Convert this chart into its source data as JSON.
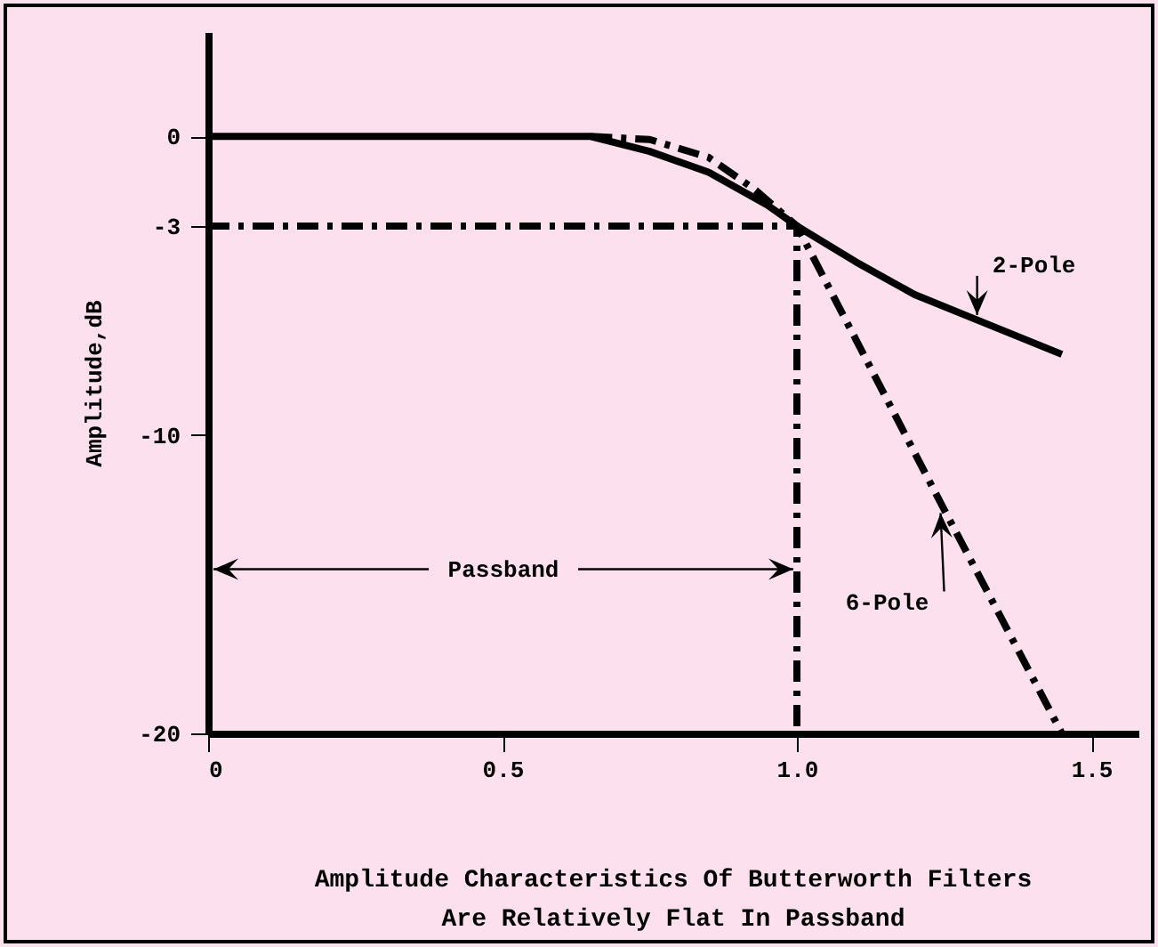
{
  "chart_data": {
    "type": "line",
    "title": "Amplitude Characteristics Of Butterworth Filters\nAre Relatively Flat In Passband",
    "ylabel": "Amplitude,dB",
    "xlim": [
      0,
      1.58
    ],
    "ylim": [
      -20,
      3.5
    ],
    "xticks": [
      0,
      0.5,
      {
        "value": 1,
        "label": "1.0"
      },
      1.5
    ],
    "yticks": [
      0,
      -3,
      -10,
      -20
    ],
    "series": [
      {
        "name": "2-Pole",
        "color": "#000000",
        "line_style": "solid",
        "x": [
          0,
          0.65,
          0.75,
          0.85,
          0.95,
          1.0,
          1.1,
          1.2,
          1.3,
          1.45
        ],
        "values": [
          0,
          0,
          -0.5,
          -1.2,
          -2.3,
          -3,
          -4.2,
          -5.3,
          -6.1,
          -7.3
        ]
      },
      {
        "name": "6-Pole",
        "color": "#000000",
        "line_style": "dashed",
        "x": [
          0.65,
          0.75,
          0.85,
          0.93,
          1.0,
          1.25,
          1.45
        ],
        "values": [
          0,
          -0.1,
          -0.7,
          -1.8,
          -3,
          -12.5,
          -20
        ]
      },
      {
        "color": "#000000",
        "line_style": "dashed",
        "x": [
          0,
          1.0,
          1.0
        ],
        "values": [
          -3,
          -3,
          -20
        ]
      }
    ],
    "annotations": [
      {
        "text": "Passband",
        "x": 1.0,
        "y": -14.5
      }
    ]
  }
}
